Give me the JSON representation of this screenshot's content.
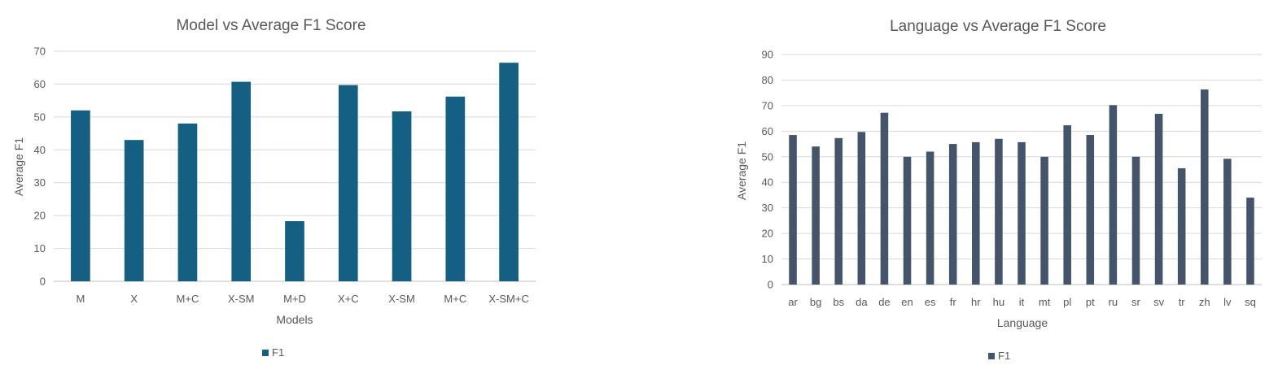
{
  "chart_data": [
    {
      "type": "bar",
      "title": "Model vs Average F1 Score",
      "xlabel": "Models",
      "ylabel": "Average F1",
      "ylim": [
        0,
        70
      ],
      "yticks": [
        0,
        10,
        20,
        30,
        40,
        50,
        60,
        70
      ],
      "categories": [
        "M",
        "X",
        "M+C",
        "X-SM",
        "M+D",
        "X+C",
        "X-SM",
        "M+C",
        "X-SM+C"
      ],
      "series": [
        {
          "name": "F1",
          "color": "#156082",
          "values": [
            52,
            43,
            48,
            60.7,
            18.3,
            59.7,
            51.7,
            56.2,
            66.5
          ]
        }
      ],
      "grid": true,
      "legend": "bottom"
    },
    {
      "type": "bar",
      "title": "Language vs Average F1 Score",
      "xlabel": "Language",
      "ylabel": "Average F1",
      "ylim": [
        0,
        90
      ],
      "yticks": [
        0,
        10,
        20,
        30,
        40,
        50,
        60,
        70,
        80,
        90
      ],
      "categories": [
        "ar",
        "bg",
        "bs",
        "da",
        "de",
        "en",
        "es",
        "fr",
        "hr",
        "hu",
        "it",
        "mt",
        "pl",
        "pt",
        "ru",
        "sr",
        "sv",
        "tr",
        "zh",
        "lv",
        "sq"
      ],
      "series": [
        {
          "name": "F1",
          "color": "#44546a",
          "values": [
            58.5,
            54,
            57.3,
            59.7,
            67.2,
            50,
            52,
            55,
            55.7,
            57,
            55.7,
            50,
            62.3,
            58.5,
            70.2,
            50,
            66.8,
            45.5,
            76.3,
            49.2,
            34
          ]
        }
      ],
      "grid": true,
      "legend": "bottom"
    }
  ]
}
